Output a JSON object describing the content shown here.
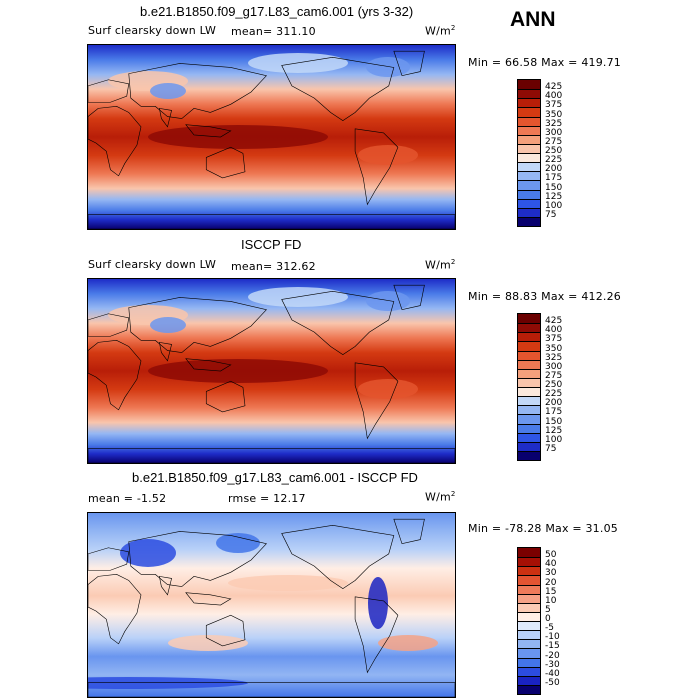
{
  "annual_label": "ANN",
  "colors": {
    "cold": "#1a35d0",
    "warm": "#d63a10",
    "neutral": "#f7e9df",
    "pos_scale": [
      "#08006e",
      "#1e2cc8",
      "#2e55e6",
      "#4a7be8",
      "#6c97ee",
      "#95b7f3",
      "#c2d8f8",
      "#fbe9dd",
      "#f9c5ac",
      "#f4a07c",
      "#ee7854",
      "#e4552e",
      "#d43a12",
      "#b81e08",
      "#8e0b05",
      "#6a0000"
    ],
    "div_scale": [
      "#08006e",
      "#1a23c2",
      "#2c4ce0",
      "#4375e9",
      "#6995ef",
      "#92b5f3",
      "#b9d1f8",
      "#dfeafc",
      "#ffeee5",
      "#fbcbb4",
      "#f5a286",
      "#ee7b5a",
      "#e35432",
      "#cc3112",
      "#a51005",
      "#7a0000"
    ]
  },
  "chart_data": [
    {
      "type": "heatmap",
      "title": "b.e21.B1850.f09_g17.L83_cam6.001 (yrs 3-32)",
      "variable": "Surf clearsky down LW",
      "mean_label": "mean=",
      "mean": "311.10",
      "units": "W/m",
      "units_exp": "2",
      "min_label": "Min =",
      "min": "66.58",
      "max_label": "Max =",
      "max": "419.71",
      "colorbar_ticks": [
        "425",
        "400",
        "375",
        "350",
        "325",
        "300",
        "275",
        "250",
        "225",
        "200",
        "175",
        "150",
        "125",
        "100",
        "75"
      ]
    },
    {
      "type": "heatmap",
      "title": "ISCCP FD",
      "variable": "Surf clearsky down LW",
      "mean_label": "mean=",
      "mean": "312.62",
      "units": "W/m",
      "units_exp": "2",
      "min_label": "Min =",
      "min": "88.83",
      "max_label": "Max =",
      "max": "412.26",
      "colorbar_ticks": [
        "425",
        "400",
        "375",
        "350",
        "325",
        "300",
        "275",
        "250",
        "225",
        "200",
        "175",
        "150",
        "125",
        "100",
        "75"
      ]
    },
    {
      "type": "heatmap",
      "title": "b.e21.B1850.f09_g17.L83_cam6.001 - ISCCP FD",
      "mean_label": "mean =",
      "mean": "-1.52",
      "rmse_label": "rmse =",
      "rmse": "12.17",
      "units": "W/m",
      "units_exp": "2",
      "min_label": "Min =",
      "min": "-78.28",
      "max_label": "Max =",
      "max": "31.05",
      "colorbar_ticks": [
        "50",
        "40",
        "30",
        "20",
        "15",
        "10",
        "5",
        "0",
        "-5",
        "-10",
        "-15",
        "-20",
        "-30",
        "-40",
        "-50"
      ]
    }
  ]
}
